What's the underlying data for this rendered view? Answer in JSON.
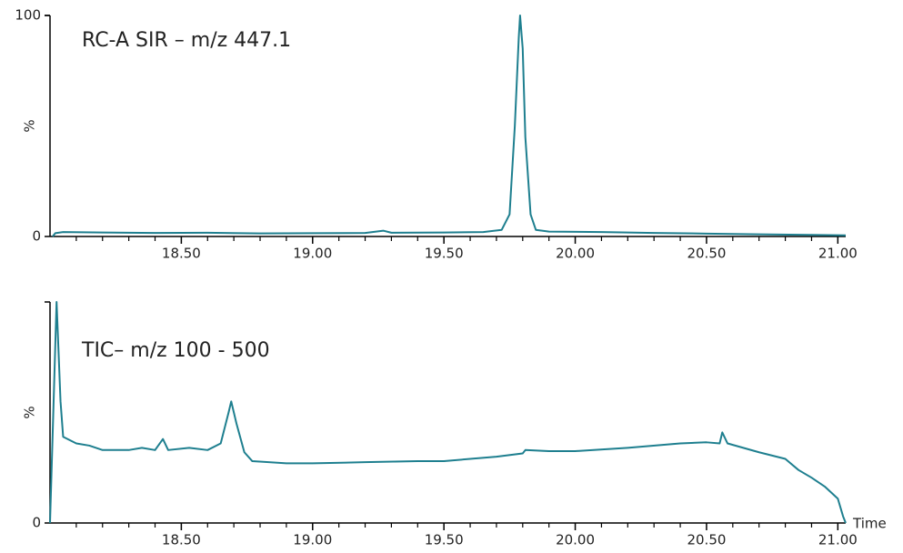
{
  "chart_data": [
    {
      "type": "line",
      "title": "RC-A SIR – m/z 447.1",
      "ylabel": "%",
      "xlim": [
        18.0,
        21.03
      ],
      "ylim": [
        0,
        100
      ],
      "xticks": [
        {
          "value": 18.5,
          "label": "18.50"
        },
        {
          "value": 19.0,
          "label": "19.00"
        },
        {
          "value": 19.5,
          "label": "19.50"
        },
        {
          "value": 20.0,
          "label": "20.00"
        },
        {
          "value": 20.5,
          "label": "20.50"
        },
        {
          "value": 21.0,
          "label": "21.00"
        }
      ],
      "xminor_ticks": [
        18.1,
        18.2,
        18.3,
        18.4,
        18.6,
        18.7,
        18.8,
        18.9,
        19.1,
        19.2,
        19.3,
        19.4,
        19.6,
        19.7,
        19.8,
        19.9,
        20.1,
        20.2,
        20.3,
        20.4,
        20.6,
        20.7,
        20.8,
        20.9
      ],
      "yticks": [
        0,
        100
      ],
      "series": [
        {
          "color": "#1e7f8f",
          "x": [
            18.01,
            18.02,
            18.05,
            18.2,
            18.4,
            18.6,
            18.8,
            19.0,
            19.2,
            19.27,
            19.3,
            19.5,
            19.65,
            19.72,
            19.75,
            19.77,
            19.785,
            19.79,
            19.8,
            19.81,
            19.83,
            19.85,
            19.9,
            20.1,
            20.3,
            20.5,
            20.7,
            20.9,
            21.03
          ],
          "values": [
            0,
            1.5,
            2,
            1.8,
            1.6,
            1.7,
            1.4,
            1.5,
            1.6,
            2.6,
            1.7,
            1.8,
            2,
            3,
            10,
            50,
            90,
            100,
            85,
            45,
            10,
            3,
            2.2,
            2,
            1.6,
            1.3,
            1,
            0.7,
            0.5
          ]
        }
      ]
    },
    {
      "type": "line",
      "title": "TIC– m/z 100 - 500",
      "ylabel": "%",
      "xlabel": "Time",
      "xlim": [
        18.0,
        21.03
      ],
      "ylim": [
        0,
        100
      ],
      "xticks": [
        {
          "value": 18.5,
          "label": "18.50"
        },
        {
          "value": 19.0,
          "label": "19.00"
        },
        {
          "value": 19.5,
          "label": "19.50"
        },
        {
          "value": 20.0,
          "label": "20.00"
        },
        {
          "value": 20.5,
          "label": "20.50"
        },
        {
          "value": 21.0,
          "label": "21.00"
        }
      ],
      "xminor_ticks": [
        18.1,
        18.2,
        18.3,
        18.4,
        18.6,
        18.7,
        18.8,
        18.9,
        19.1,
        19.2,
        19.3,
        19.4,
        19.6,
        19.7,
        19.8,
        19.9,
        20.1,
        20.2,
        20.3,
        20.4,
        20.6,
        20.7,
        20.8,
        20.9
      ],
      "yticks": [
        0
      ],
      "series": [
        {
          "color": "#1e7f8f",
          "x": [
            18.0,
            18.015,
            18.025,
            18.04,
            18.05,
            18.1,
            18.15,
            18.2,
            18.3,
            18.35,
            18.4,
            18.43,
            18.45,
            18.53,
            18.6,
            18.65,
            18.68,
            18.69,
            18.71,
            18.74,
            18.77,
            18.9,
            19.0,
            19.2,
            19.4,
            19.5,
            19.7,
            19.8,
            19.81,
            19.9,
            20.0,
            20.2,
            20.4,
            20.5,
            20.55,
            20.56,
            20.58,
            20.7,
            20.8,
            20.85,
            20.9,
            20.95,
            21.0,
            21.02,
            21.03
          ],
          "values": [
            0,
            60,
            100,
            55,
            39,
            36,
            35,
            33,
            33,
            34,
            33,
            38,
            33,
            34,
            33,
            36,
            50,
            55,
            45,
            32,
            28,
            27,
            27,
            27.5,
            28,
            28,
            30,
            31.5,
            33,
            32.5,
            32.5,
            34,
            36,
            36.5,
            36,
            41,
            36,
            32,
            29,
            24,
            20.5,
            16.5,
            11,
            3,
            0
          ]
        }
      ]
    }
  ]
}
